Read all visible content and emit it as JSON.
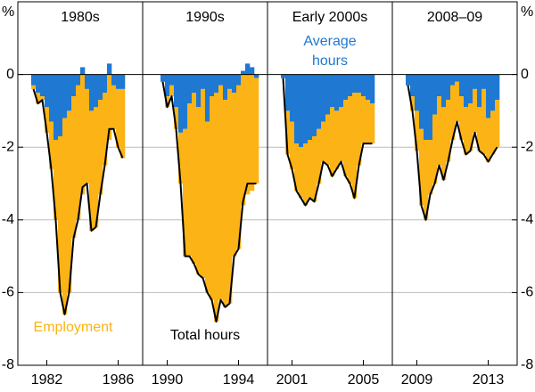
{
  "chart_data": [
    {
      "type": "bar",
      "title": "1980s",
      "ylabel": "%",
      "ylim": [
        -8,
        2
      ],
      "yticks": [
        0,
        -2,
        -4,
        -6,
        -8
      ],
      "grid": true,
      "categories": [
        null,
        null,
        null,
        null,
        null,
        null,
        "1982",
        null,
        null,
        null,
        null,
        null,
        null,
        null,
        null,
        null,
        null,
        null,
        null,
        null,
        null,
        null,
        "1986",
        null,
        null,
        null,
        null,
        null
      ],
      "series": [
        {
          "name": "Employment",
          "color": "#fbb315",
          "values": [
            null,
            null,
            null,
            -0.1,
            -0.3,
            -0.1,
            -0.7,
            -1.3,
            -2.2,
            -4.3,
            -5.4,
            -5.0,
            -3.9,
            -3.7,
            -3.3,
            -2.6,
            -3.3,
            -3.3,
            -2.6,
            -2.0,
            -1.8,
            -1.2,
            -1.6,
            -1.9,
            null,
            null,
            null,
            null
          ]
        },
        {
          "color": "#1f78d1",
          "values": [
            null,
            null,
            null,
            -0.3,
            -0.5,
            -0.6,
            -0.9,
            -1.3,
            -1.8,
            -1.7,
            -1.2,
            -1.0,
            -0.6,
            -0.3,
            0.2,
            -0.4,
            -1.0,
            -0.9,
            -0.7,
            -0.5,
            0.3,
            -0.3,
            -0.4,
            -0.4,
            null,
            null,
            null,
            null
          ]
        },
        {
          "type": "line",
          "color": "#000000",
          "values": [
            null,
            null,
            null,
            -0.4,
            -0.8,
            -0.7,
            -1.6,
            -2.6,
            -4.0,
            -6.0,
            -6.6,
            -6.0,
            -4.5,
            -4.0,
            -3.1,
            -3.0,
            -4.3,
            -4.2,
            -3.3,
            -2.5,
            -1.5,
            -1.5,
            -2.0,
            -2.3,
            null,
            null,
            null,
            null
          ]
        }
      ]
    },
    {
      "type": "bar",
      "title": "1990s",
      "ylim": [
        -8,
        2
      ],
      "yticks": [
        0,
        -2,
        -4,
        -6,
        -8
      ],
      "grid": true,
      "categories": [
        null,
        null,
        null,
        null,
        null,
        "1990",
        null,
        null,
        null,
        null,
        null,
        null,
        null,
        null,
        null,
        null,
        null,
        null,
        null,
        null,
        null,
        "1994",
        null,
        null,
        null,
        null,
        null,
        null
      ],
      "series": [
        {
          "color": "#fbb315",
          "values": [
            null,
            null,
            null,
            null,
            0,
            -0.3,
            -0.3,
            -0.6,
            -1.4,
            -3.5,
            -4.2,
            -4.7,
            -4.6,
            -5.2,
            -4.7,
            -5.6,
            -6.3,
            -5.9,
            -5.7,
            -5.9,
            -4.5,
            -4.5,
            -3.6,
            -3.3,
            -3.2,
            -2.9,
            null,
            null
          ]
        },
        {
          "color": "#1f78d1",
          "values": [
            null,
            null,
            null,
            null,
            -0.2,
            -0.6,
            -0.3,
            -0.9,
            -1.6,
            -1.5,
            -0.8,
            -0.5,
            -0.9,
            -0.4,
            -1.3,
            -0.6,
            -0.5,
            -0.3,
            -0.7,
            -0.4,
            -0.5,
            -0.3,
            0.1,
            0.3,
            0.2,
            -0.1,
            null,
            null
          ]
        },
        {
          "name": "Total hours",
          "type": "line",
          "color": "#000000",
          "values": [
            null,
            null,
            null,
            null,
            -0.2,
            -0.9,
            -0.6,
            -1.5,
            -3.0,
            -5.0,
            -5.0,
            -5.2,
            -5.5,
            -5.6,
            -6.0,
            -6.2,
            -6.8,
            -6.2,
            -6.4,
            -6.3,
            -5.0,
            -4.8,
            -3.5,
            -3.0,
            -3.0,
            -3.0,
            null,
            null
          ]
        }
      ]
    },
    {
      "type": "bar",
      "title": "Early 2000s",
      "ylim": [
        -8,
        2
      ],
      "yticks": [
        0,
        -2,
        -4,
        -6,
        -8
      ],
      "grid": true,
      "categories": [
        null,
        null,
        null,
        null,
        null,
        "2001",
        null,
        null,
        null,
        null,
        null,
        null,
        null,
        null,
        null,
        null,
        null,
        null,
        null,
        null,
        null,
        "2005",
        null,
        null,
        null,
        null,
        null,
        null
      ],
      "series": [
        {
          "color": "#fbb315",
          "values": [
            null,
            null,
            null,
            0,
            -1.2,
            -1.3,
            -1.3,
            -1.4,
            -1.7,
            -1.6,
            -1.8,
            -1.5,
            -1.1,
            -1.4,
            -1.9,
            -1.6,
            -1.5,
            -2.1,
            -2.4,
            -2.9,
            -2.0,
            -1.3,
            -1.2,
            -1.1,
            null,
            null,
            null,
            null
          ]
        },
        {
          "name": "Average hours",
          "color": "#1f78d1",
          "values": [
            null,
            null,
            null,
            -0.1,
            -1.0,
            -1.3,
            -1.9,
            -2.0,
            -1.9,
            -1.8,
            -1.7,
            -1.5,
            -1.3,
            -1.1,
            -0.9,
            -1.0,
            -0.9,
            -0.7,
            -0.6,
            -0.5,
            -0.5,
            -0.6,
            -0.7,
            -0.8,
            null,
            null,
            null,
            null
          ]
        },
        {
          "type": "line",
          "color": "#000000",
          "values": [
            null,
            null,
            null,
            -0.1,
            -2.2,
            -2.6,
            -3.2,
            -3.4,
            -3.6,
            -3.4,
            -3.5,
            -3.0,
            -2.4,
            -2.5,
            -2.8,
            -2.6,
            -2.4,
            -2.8,
            -3.0,
            -3.4,
            -2.5,
            -1.9,
            -1.9,
            -1.9,
            null,
            null,
            null,
            null
          ]
        }
      ]
    },
    {
      "type": "bar",
      "title": "2008–09",
      "ylabel": "%",
      "ylim": [
        -8,
        2
      ],
      "yticks": [
        0,
        -2,
        -4,
        -6,
        -8
      ],
      "grid": true,
      "categories": [
        null,
        null,
        null,
        null,
        null,
        "2009",
        null,
        null,
        null,
        null,
        null,
        null,
        null,
        null,
        null,
        null,
        null,
        null,
        null,
        null,
        null,
        "2013",
        null,
        null,
        null,
        null,
        null,
        null
      ],
      "series": [
        {
          "color": "#fbb315",
          "values": [
            null,
            null,
            null,
            0,
            -0.4,
            -1.1,
            -2.1,
            -2.2,
            -1.5,
            -1.9,
            -1.9,
            -2.0,
            -1.7,
            -1.5,
            -1.1,
            -1.2,
            -1.3,
            -1.3,
            -1.2,
            -1.2,
            -1.8,
            -1.2,
            -1.2,
            -1.3,
            null,
            null,
            null,
            null
          ]
        },
        {
          "color": "#1f78d1",
          "values": [
            null,
            null,
            null,
            -0.3,
            -0.6,
            -1.0,
            -1.5,
            -1.8,
            -1.8,
            -1.1,
            -0.6,
            -0.9,
            -0.7,
            -0.3,
            -0.2,
            -0.6,
            -0.9,
            -0.8,
            -0.4,
            -0.9,
            -0.4,
            -1.2,
            -1.0,
            -0.7,
            null,
            null,
            null,
            null
          ]
        },
        {
          "type": "line",
          "color": "#000000",
          "values": [
            null,
            null,
            null,
            -0.3,
            -1.0,
            -2.1,
            -3.6,
            -4.0,
            -3.3,
            -3.0,
            -2.5,
            -2.9,
            -2.4,
            -1.8,
            -1.3,
            -1.8,
            -2.2,
            -2.1,
            -1.6,
            -2.1,
            -2.2,
            -2.4,
            -2.2,
            -2.0,
            null,
            null,
            null,
            null
          ]
        }
      ]
    }
  ]
}
